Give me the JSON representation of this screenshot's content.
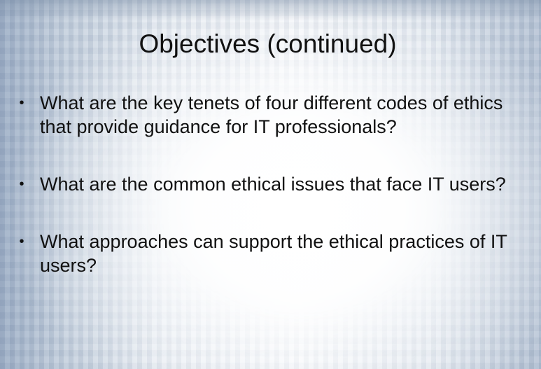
{
  "slide": {
    "title": "Objectives (continued)",
    "bullet_glyph": "•",
    "bullets": [
      {
        "text": "What are the key tenets of four different codes of ethics that provide guidance for IT professionals?"
      },
      {
        "text": "What are the common ethical issues that face IT users?"
      },
      {
        "text": "What approaches can support the ethical practices of IT users?"
      }
    ]
  },
  "colors": {
    "text": "#111111",
    "background_center": "#ffffff",
    "background_edge": "#9fb0c7"
  }
}
